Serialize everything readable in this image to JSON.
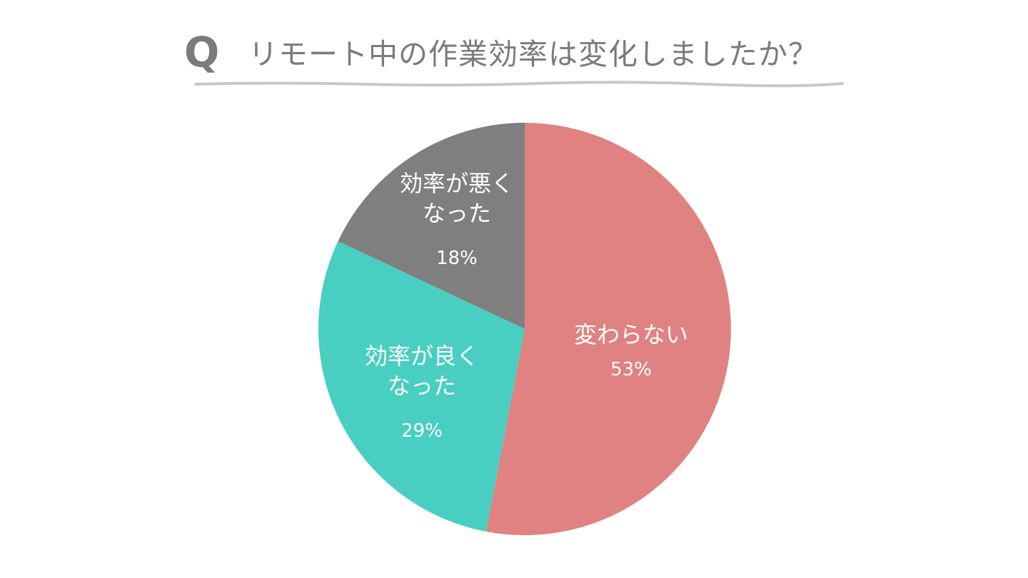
{
  "header": {
    "q_mark": "Q",
    "title": "リモート中の作業効率は変化しましたか？"
  },
  "colors": {
    "title_text": "#7b7b7b",
    "underline": "#c8c8c8",
    "label_text": "#ffffff"
  },
  "chart_data": {
    "type": "pie",
    "title": "リモート中の作業効率は変化しましたか？",
    "slices": [
      {
        "label_lines": [
          "変わらない"
        ],
        "value": 53,
        "value_label": "53%",
        "color": "#e08281"
      },
      {
        "label_lines": [
          "効率が良く",
          "なった"
        ],
        "value": 29,
        "value_label": "29%",
        "color": "#48cfc1"
      },
      {
        "label_lines": [
          "効率が悪く",
          "なった"
        ],
        "value": 18,
        "value_label": "18%",
        "color": "#7f7f7f"
      }
    ],
    "start_angle": "12 o'clock",
    "direction": "clockwise",
    "legend": "none (labels inside slices)"
  }
}
